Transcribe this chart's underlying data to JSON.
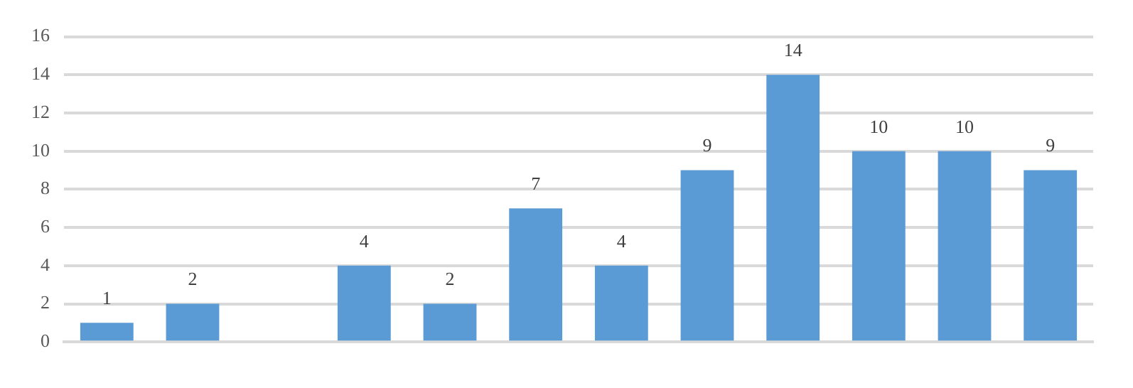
{
  "chart_data": {
    "type": "bar",
    "categories": [
      null,
      null,
      null,
      null,
      null,
      null,
      null,
      null,
      null,
      null,
      null,
      null
    ],
    "values": [
      1,
      2,
      null,
      4,
      2,
      7,
      4,
      9,
      14,
      10,
      10,
      9
    ],
    "color": "#5b9bd5",
    "ylim": [
      0,
      16
    ],
    "yticks": [
      0,
      2,
      4,
      6,
      8,
      10,
      12,
      14,
      16
    ],
    "grid": "y",
    "data_labels": true
  }
}
